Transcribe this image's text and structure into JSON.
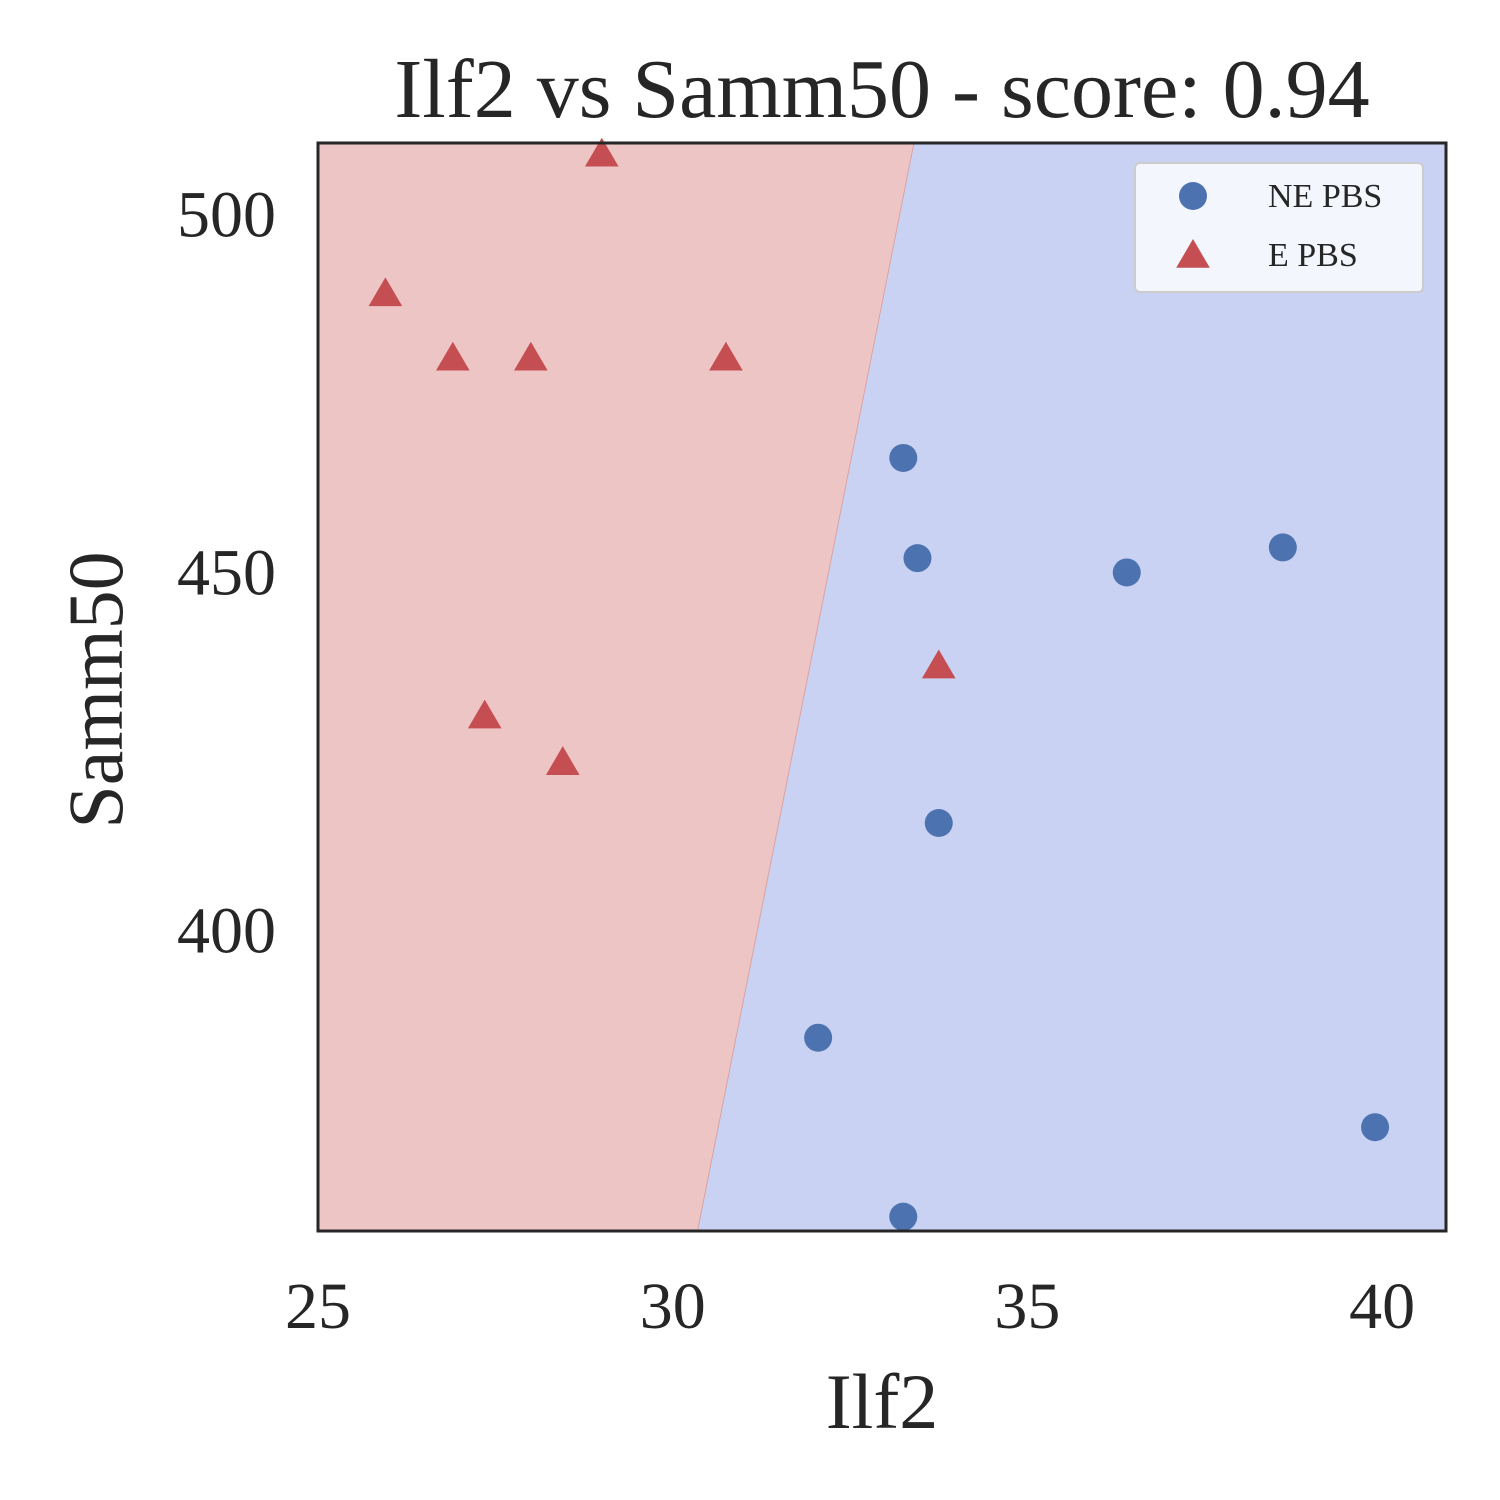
{
  "chart_data": {
    "type": "scatter",
    "title": "Ilf2 vs Samm50 - score: 0.94",
    "xlabel": "Ilf2",
    "ylabel": "Samm50",
    "xlim": [
      25,
      40.9
    ],
    "ylim": [
      358,
      510
    ],
    "xticks": [
      25,
      30,
      35,
      40
    ],
    "xtick_labels": [
      "25",
      "30",
      "35",
      "40"
    ],
    "yticks": [
      400,
      450,
      500
    ],
    "ytick_labels": [
      "400",
      "450",
      "500"
    ],
    "grid": false,
    "legend_position": "top-right",
    "decision_boundary": {
      "points": [
        [
          30.35,
          358
        ],
        [
          33.4,
          510
        ]
      ],
      "left_region_color": "#eec5c5",
      "right_region_color": "#c9d2f2",
      "line_color": "#d9a3a3"
    },
    "series": [
      {
        "name": "NE PBS",
        "marker": "circle",
        "color": "#4c72b0",
        "points": [
          [
            33.25,
            466
          ],
          [
            33.45,
            452
          ],
          [
            36.4,
            450
          ],
          [
            38.6,
            453.5
          ],
          [
            33.75,
            415
          ],
          [
            32.05,
            385
          ],
          [
            39.9,
            372.5
          ],
          [
            33.25,
            360
          ]
        ]
      },
      {
        "name": "E PBS",
        "marker": "triangle",
        "color": "#c44e52",
        "points": [
          [
            29.0,
            508.5
          ],
          [
            25.95,
            489
          ],
          [
            26.9,
            480
          ],
          [
            28.0,
            480
          ],
          [
            30.75,
            480
          ],
          [
            33.75,
            437
          ],
          [
            27.35,
            430
          ],
          [
            28.45,
            423.5
          ]
        ]
      }
    ]
  }
}
